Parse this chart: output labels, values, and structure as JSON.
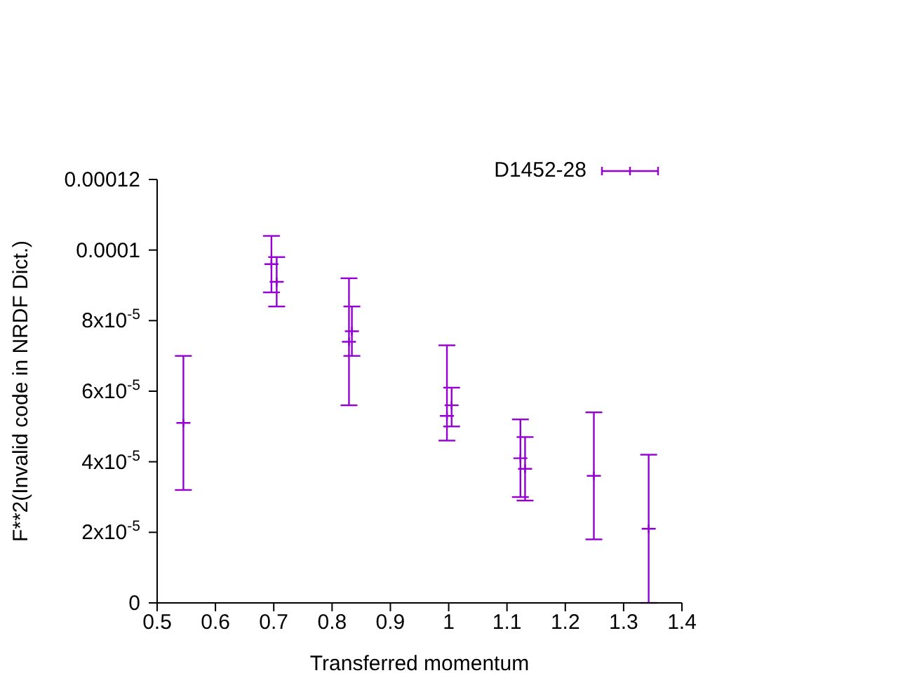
{
  "chart_data": {
    "type": "scatter",
    "xlabel": "Transferred momentum",
    "ylabel": "F**2(Invalid code in NRDF Dict.)",
    "xlim": [
      0.5,
      1.4
    ],
    "xticks": [
      0.5,
      0.6,
      0.7,
      0.8,
      0.9,
      1,
      1.1,
      1.2,
      1.3,
      1.4
    ],
    "ylim": [
      0,
      0.00012
    ],
    "yticks": [
      0,
      {
        "value": 2e-05,
        "label": "2x10$^{-5}$"
      },
      {
        "value": 4e-05,
        "label": "4x10$^{-5}$"
      },
      {
        "value": 6e-05,
        "label": "6x10$^{-5}$"
      },
      {
        "value": 8e-05,
        "label": "8x10$^{-5}$"
      },
      0.0001,
      0.00012
    ],
    "grid": false,
    "legend": "top right",
    "marker": "cross",
    "series": [
      {
        "name": "D1452-28",
        "color": "#9400d3",
        "x": [
          0.545,
          0.696,
          0.705,
          0.829,
          0.834,
          0.997,
          1.005,
          1.123,
          1.131,
          1.249,
          1.343
        ],
        "values": [
          5.1e-05,
          9.6e-05,
          9.1e-05,
          7.4e-05,
          7.7e-05,
          5.3e-05,
          5.6e-05,
          4.1e-05,
          3.8e-05,
          3.6e-05,
          2.1e-05
        ],
        "errors": [
          1.9e-05,
          8e-06,
          7e-06,
          1.8e-05,
          7e-06,
          [
            4.6e-05,
            7.3e-05
          ],
          [
            5e-05,
            6.1e-05
          ],
          1.1e-05,
          9e-06,
          1.8e-05,
          2.1e-05
        ]
      }
    ]
  }
}
